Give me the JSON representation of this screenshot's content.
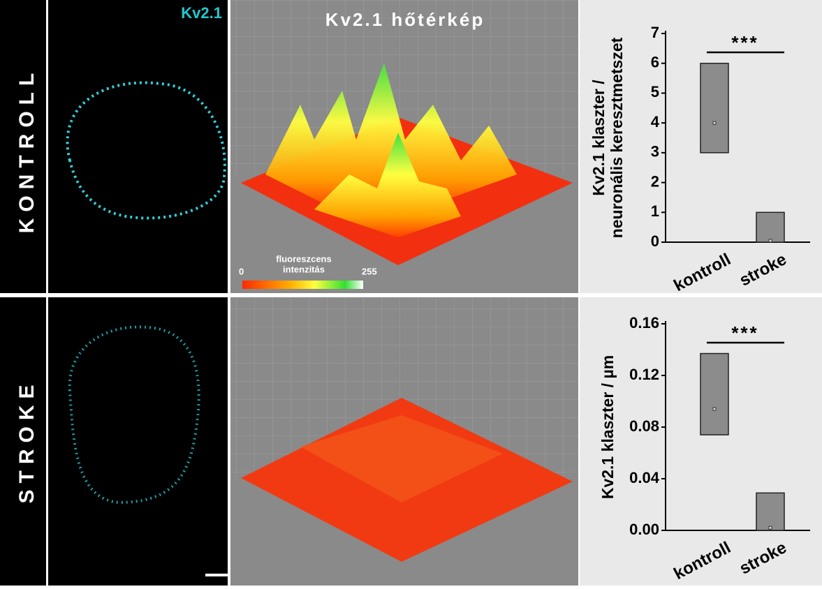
{
  "panels": {
    "row_labels": [
      "KONTROLL",
      "STROKE"
    ],
    "image_label": "Kv2.1",
    "heatmap_title": "Kv2.1 hőtérkép",
    "colorbar": {
      "label_lines": [
        "fluoreszcens",
        "intenzitás"
      ],
      "min": 0,
      "max": 255
    }
  },
  "chart_data": [
    {
      "type": "box",
      "y_label_lines": [
        "Kv2.1 klaszter /",
        "neuronális keresztmetszet"
      ],
      "categories": [
        "kontroll",
        "stroke"
      ],
      "boxes": [
        {
          "low": 3,
          "high": 6,
          "mean": 4
        },
        {
          "low": 0,
          "high": 1,
          "mean": 0.05
        }
      ],
      "color": "#8c8c8c",
      "ylim": [
        0,
        7
      ],
      "yticks": [
        0,
        1,
        2,
        3,
        4,
        5,
        6,
        7
      ],
      "significance": "***"
    },
    {
      "type": "box",
      "y_label_lines": [
        "Kv2.1 klaszter / µm"
      ],
      "categories": [
        "kontroll",
        "stroke"
      ],
      "boxes": [
        {
          "low": 0.074,
          "high": 0.137,
          "mean": 0.094
        },
        {
          "low": 0,
          "high": 0.029,
          "mean": 0.002
        }
      ],
      "color": "#8c8c8c",
      "ylim": [
        0,
        0.16
      ],
      "yticks": [
        {
          "value": 0,
          "label": "0.00"
        },
        0.04,
        0.08,
        0.12,
        0.16
      ],
      "significance": "***"
    }
  ]
}
